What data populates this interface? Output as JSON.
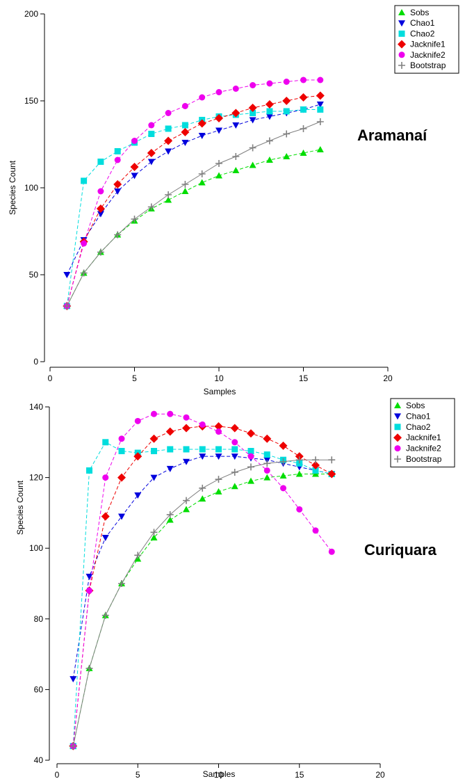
{
  "chart_data": [
    {
      "type": "line",
      "site_label": "Aramanaí",
      "xlabel": "Samples",
      "ylabel": "Species Count",
      "xlim": [
        0,
        20
      ],
      "ylim": [
        0,
        200
      ],
      "xticks": [
        0,
        5,
        10,
        15,
        20
      ],
      "yticks": [
        0,
        50,
        100,
        150,
        200
      ],
      "x": [
        1,
        2,
        3,
        4,
        5,
        6,
        7,
        8,
        9,
        10,
        11,
        12,
        13,
        14,
        15,
        16
      ],
      "series": [
        {
          "name": "Sobs",
          "color": "#00dd00",
          "marker": "triangle-up",
          "values": [
            32,
            51,
            63,
            73,
            81,
            88,
            93,
            98,
            103,
            107,
            110,
            113,
            116,
            118,
            120,
            122
          ]
        },
        {
          "name": "Chao1",
          "color": "#0000dd",
          "marker": "triangle-down",
          "values": [
            50,
            70,
            85,
            98,
            107,
            115,
            121,
            126,
            130,
            133,
            136,
            139,
            141,
            143,
            145,
            148
          ]
        },
        {
          "name": "Chao2",
          "color": "#00dddd",
          "marker": "square",
          "values": [
            32,
            104,
            115,
            121,
            126,
            131,
            134,
            136,
            139,
            141,
            142,
            143,
            144,
            144,
            145,
            145
          ]
        },
        {
          "name": "Jacknife1",
          "color": "#ee0000",
          "marker": "diamond",
          "values": [
            32,
            69,
            88,
            102,
            112,
            120,
            127,
            132,
            137,
            140,
            143,
            146,
            148,
            150,
            152,
            153
          ]
        },
        {
          "name": "Jacknife2",
          "color": "#ee00ee",
          "marker": "circle",
          "values": [
            32,
            68,
            98,
            116,
            127,
            136,
            143,
            147,
            152,
            155,
            157,
            159,
            160,
            161,
            162,
            162
          ]
        },
        {
          "name": "Bootstrap",
          "color": "#808080",
          "marker": "plus",
          "values": [
            32,
            51,
            63,
            73,
            82,
            89,
            96,
            102,
            108,
            114,
            118,
            123,
            127,
            131,
            134,
            138
          ]
        }
      ]
    },
    {
      "type": "line",
      "site_label": "Curiquara",
      "xlabel": "Samples",
      "ylabel": "Species Count",
      "xlim": [
        0,
        20
      ],
      "ylim": [
        40,
        140
      ],
      "xticks": [
        0,
        5,
        10,
        15,
        20
      ],
      "yticks": [
        40,
        60,
        80,
        100,
        120,
        140
      ],
      "x": [
        1,
        2,
        3,
        4,
        5,
        6,
        7,
        8,
        9,
        10,
        11,
        12,
        13,
        14,
        15,
        16,
        17
      ],
      "series": [
        {
          "name": "Sobs",
          "color": "#00dd00",
          "marker": "triangle-up",
          "values": [
            44,
            66,
            81,
            90,
            97,
            103,
            108,
            111,
            114,
            116,
            117.5,
            119,
            120,
            120.5,
            121,
            121,
            121
          ]
        },
        {
          "name": "Chao1",
          "color": "#0000dd",
          "marker": "triangle-down",
          "values": [
            63,
            92,
            103,
            109,
            115,
            120,
            122.5,
            124.5,
            126,
            126,
            126,
            125.5,
            125,
            124,
            123,
            122,
            121
          ]
        },
        {
          "name": "Chao2",
          "color": "#00dddd",
          "marker": "square",
          "values": [
            44,
            122,
            130,
            127.5,
            127,
            127.5,
            128,
            128,
            128,
            128,
            128,
            127.5,
            126.5,
            125,
            124,
            122,
            121
          ]
        },
        {
          "name": "Jacknife1",
          "color": "#ee0000",
          "marker": "diamond",
          "values": [
            44,
            88,
            109,
            120,
            126,
            131,
            133,
            134,
            134.5,
            134.5,
            134,
            132.5,
            131,
            129,
            126,
            123.5,
            121
          ]
        },
        {
          "name": "Jacknife2",
          "color": "#ee00ee",
          "marker": "circle",
          "values": [
            44,
            88,
            120,
            131,
            136,
            138,
            138,
            137,
            135,
            133,
            130,
            126,
            122,
            117,
            111,
            105,
            99
          ]
        },
        {
          "name": "Bootstrap",
          "color": "#808080",
          "marker": "plus",
          "values": [
            44,
            66,
            81,
            90,
            98,
            104.5,
            109.5,
            113.5,
            117,
            119.5,
            121.5,
            123,
            124,
            124.5,
            125,
            125,
            125
          ]
        }
      ]
    }
  ]
}
